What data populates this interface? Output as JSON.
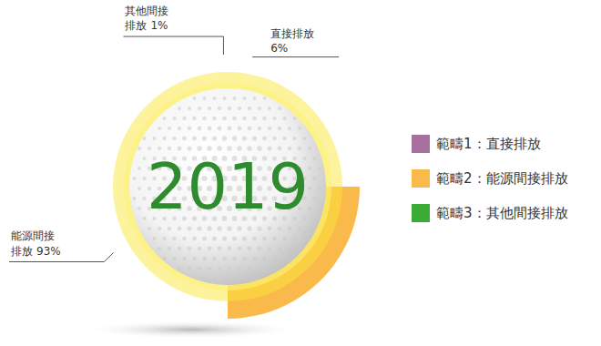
{
  "chart_data": {
    "type": "pie",
    "title": "2019",
    "categories": [
      "範疇1：直接排放",
      "範疇2：能源間接排放",
      "範疇3：其他間接排放"
    ],
    "slice_labels": [
      "直接排放",
      "能源間接排放",
      "其他間接排放"
    ],
    "values": [
      6,
      93,
      1
    ],
    "value_labels": [
      "6%",
      "93%",
      "1%"
    ],
    "colors": [
      "#a8709f",
      "#f9b94b",
      "#3bab35"
    ],
    "data_labels": true,
    "legend": "right"
  }
}
